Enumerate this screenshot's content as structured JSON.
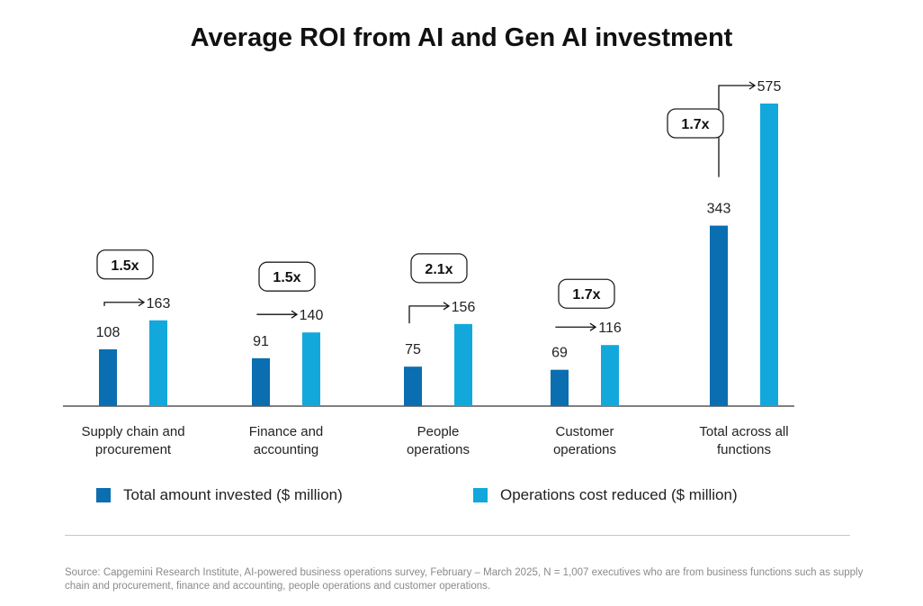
{
  "chart_data": {
    "type": "bar",
    "title": "Average ROI from AI and Gen AI investment",
    "categories": [
      [
        "Supply chain and",
        "procurement"
      ],
      [
        "Finance and",
        "accounting"
      ],
      [
        "People",
        "operations"
      ],
      [
        "Customer",
        "operations"
      ],
      [
        "Total across all",
        "functions"
      ]
    ],
    "series": [
      {
        "name": "Total amount invested ($ million)",
        "color": "#0a6eb0",
        "values": [
          108,
          91,
          75,
          69,
          343
        ]
      },
      {
        "name": "Operations cost reduced ($ million)",
        "color": "#12a8dc",
        "values": [
          163,
          140,
          156,
          116,
          575
        ]
      }
    ],
    "multipliers": [
      "1.5x",
      "1.5x",
      "2.1x",
      "1.7x",
      "1.7x"
    ],
    "ylim": [
      0,
      575
    ],
    "grid": false,
    "legend_position": "bottom"
  },
  "source": "Source: Capgemini Research Institute, AI-powered business operations survey, February – March 2025, N = 1,007 executives who are from business functions such as supply chain and procurement, finance and accounting, people operations and customer operations."
}
